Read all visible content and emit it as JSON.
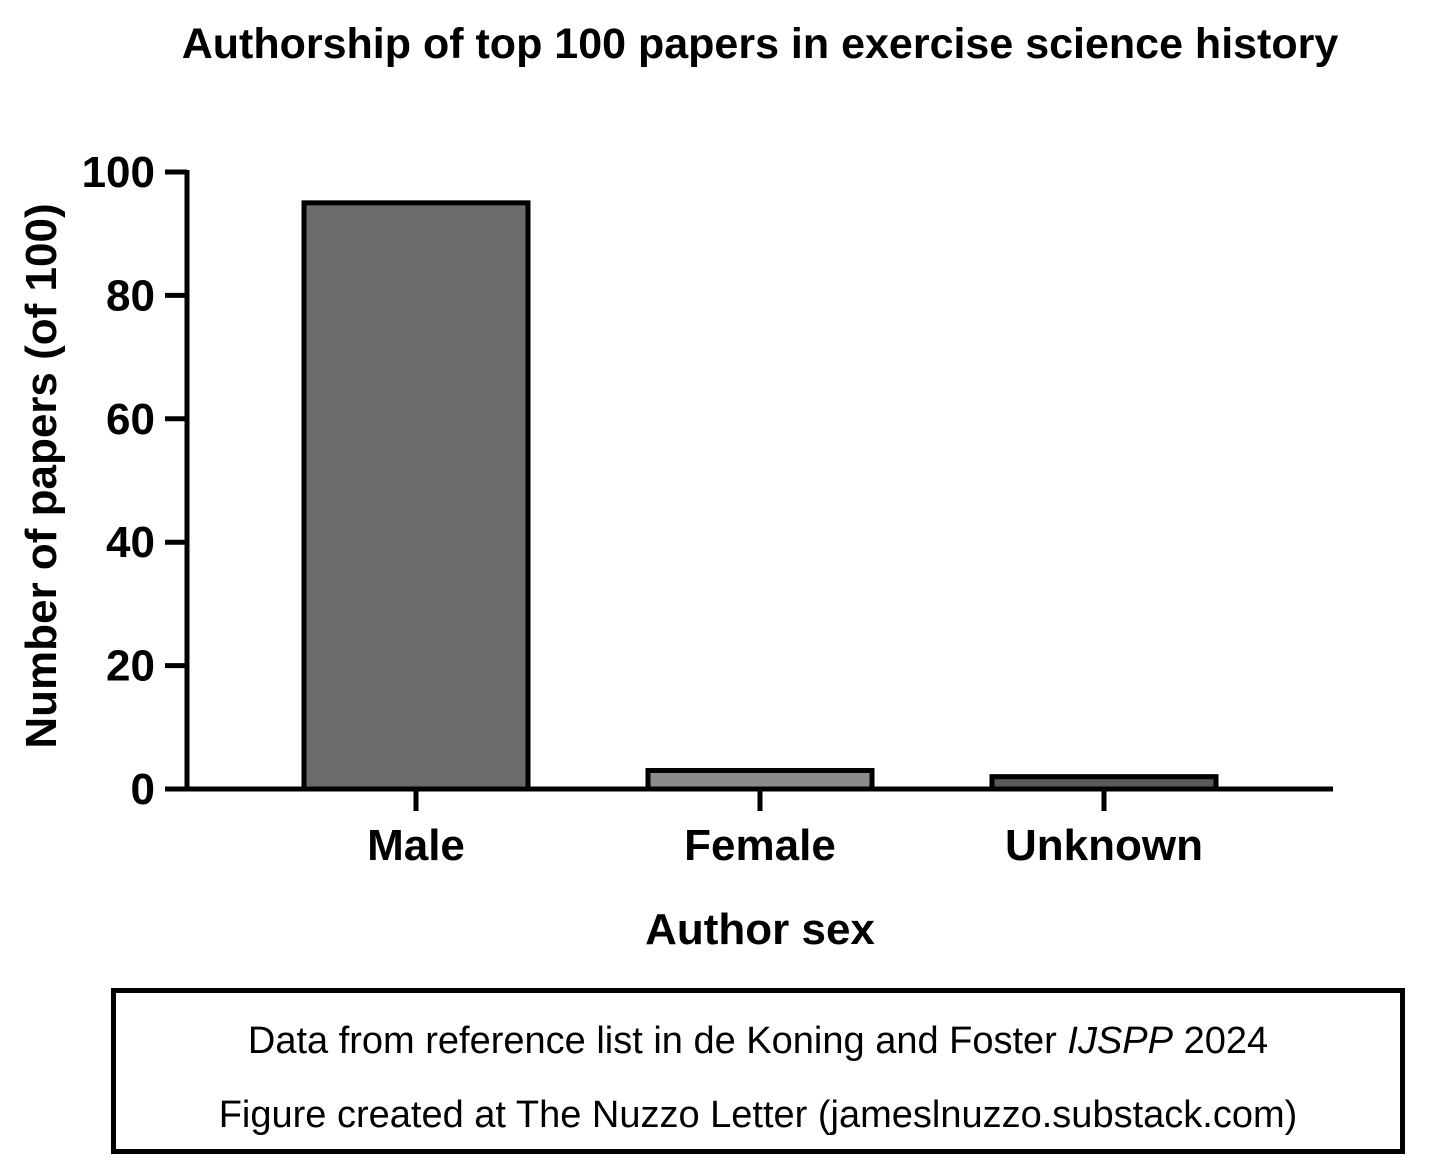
{
  "chart_data": {
    "type": "bar",
    "title": "Authorship of top 100 papers in exercise science history",
    "xlabel": "Author sex",
    "ylabel": "Number of papers (of 100)",
    "categories": [
      "Male",
      "Female",
      "Unknown"
    ],
    "values": [
      95,
      3,
      2
    ],
    "ylim": [
      0,
      100
    ],
    "yticks": [
      "0",
      "20",
      "40",
      "60",
      "80",
      "100"
    ],
    "grid": false,
    "legend": "none",
    "colors": {
      "bar_fill": [
        "#6b6b6b",
        "#8c8c8c",
        "#5a5a5a"
      ],
      "bar_stroke": "#000000"
    }
  },
  "note": {
    "line1_prefix": "Data from reference list in de Koning and Foster ",
    "line1_italic": "IJSPP",
    "line1_suffix": " 2024",
    "line2": "Figure created at The Nuzzo Letter (jameslnuzzo.substack.com)"
  }
}
